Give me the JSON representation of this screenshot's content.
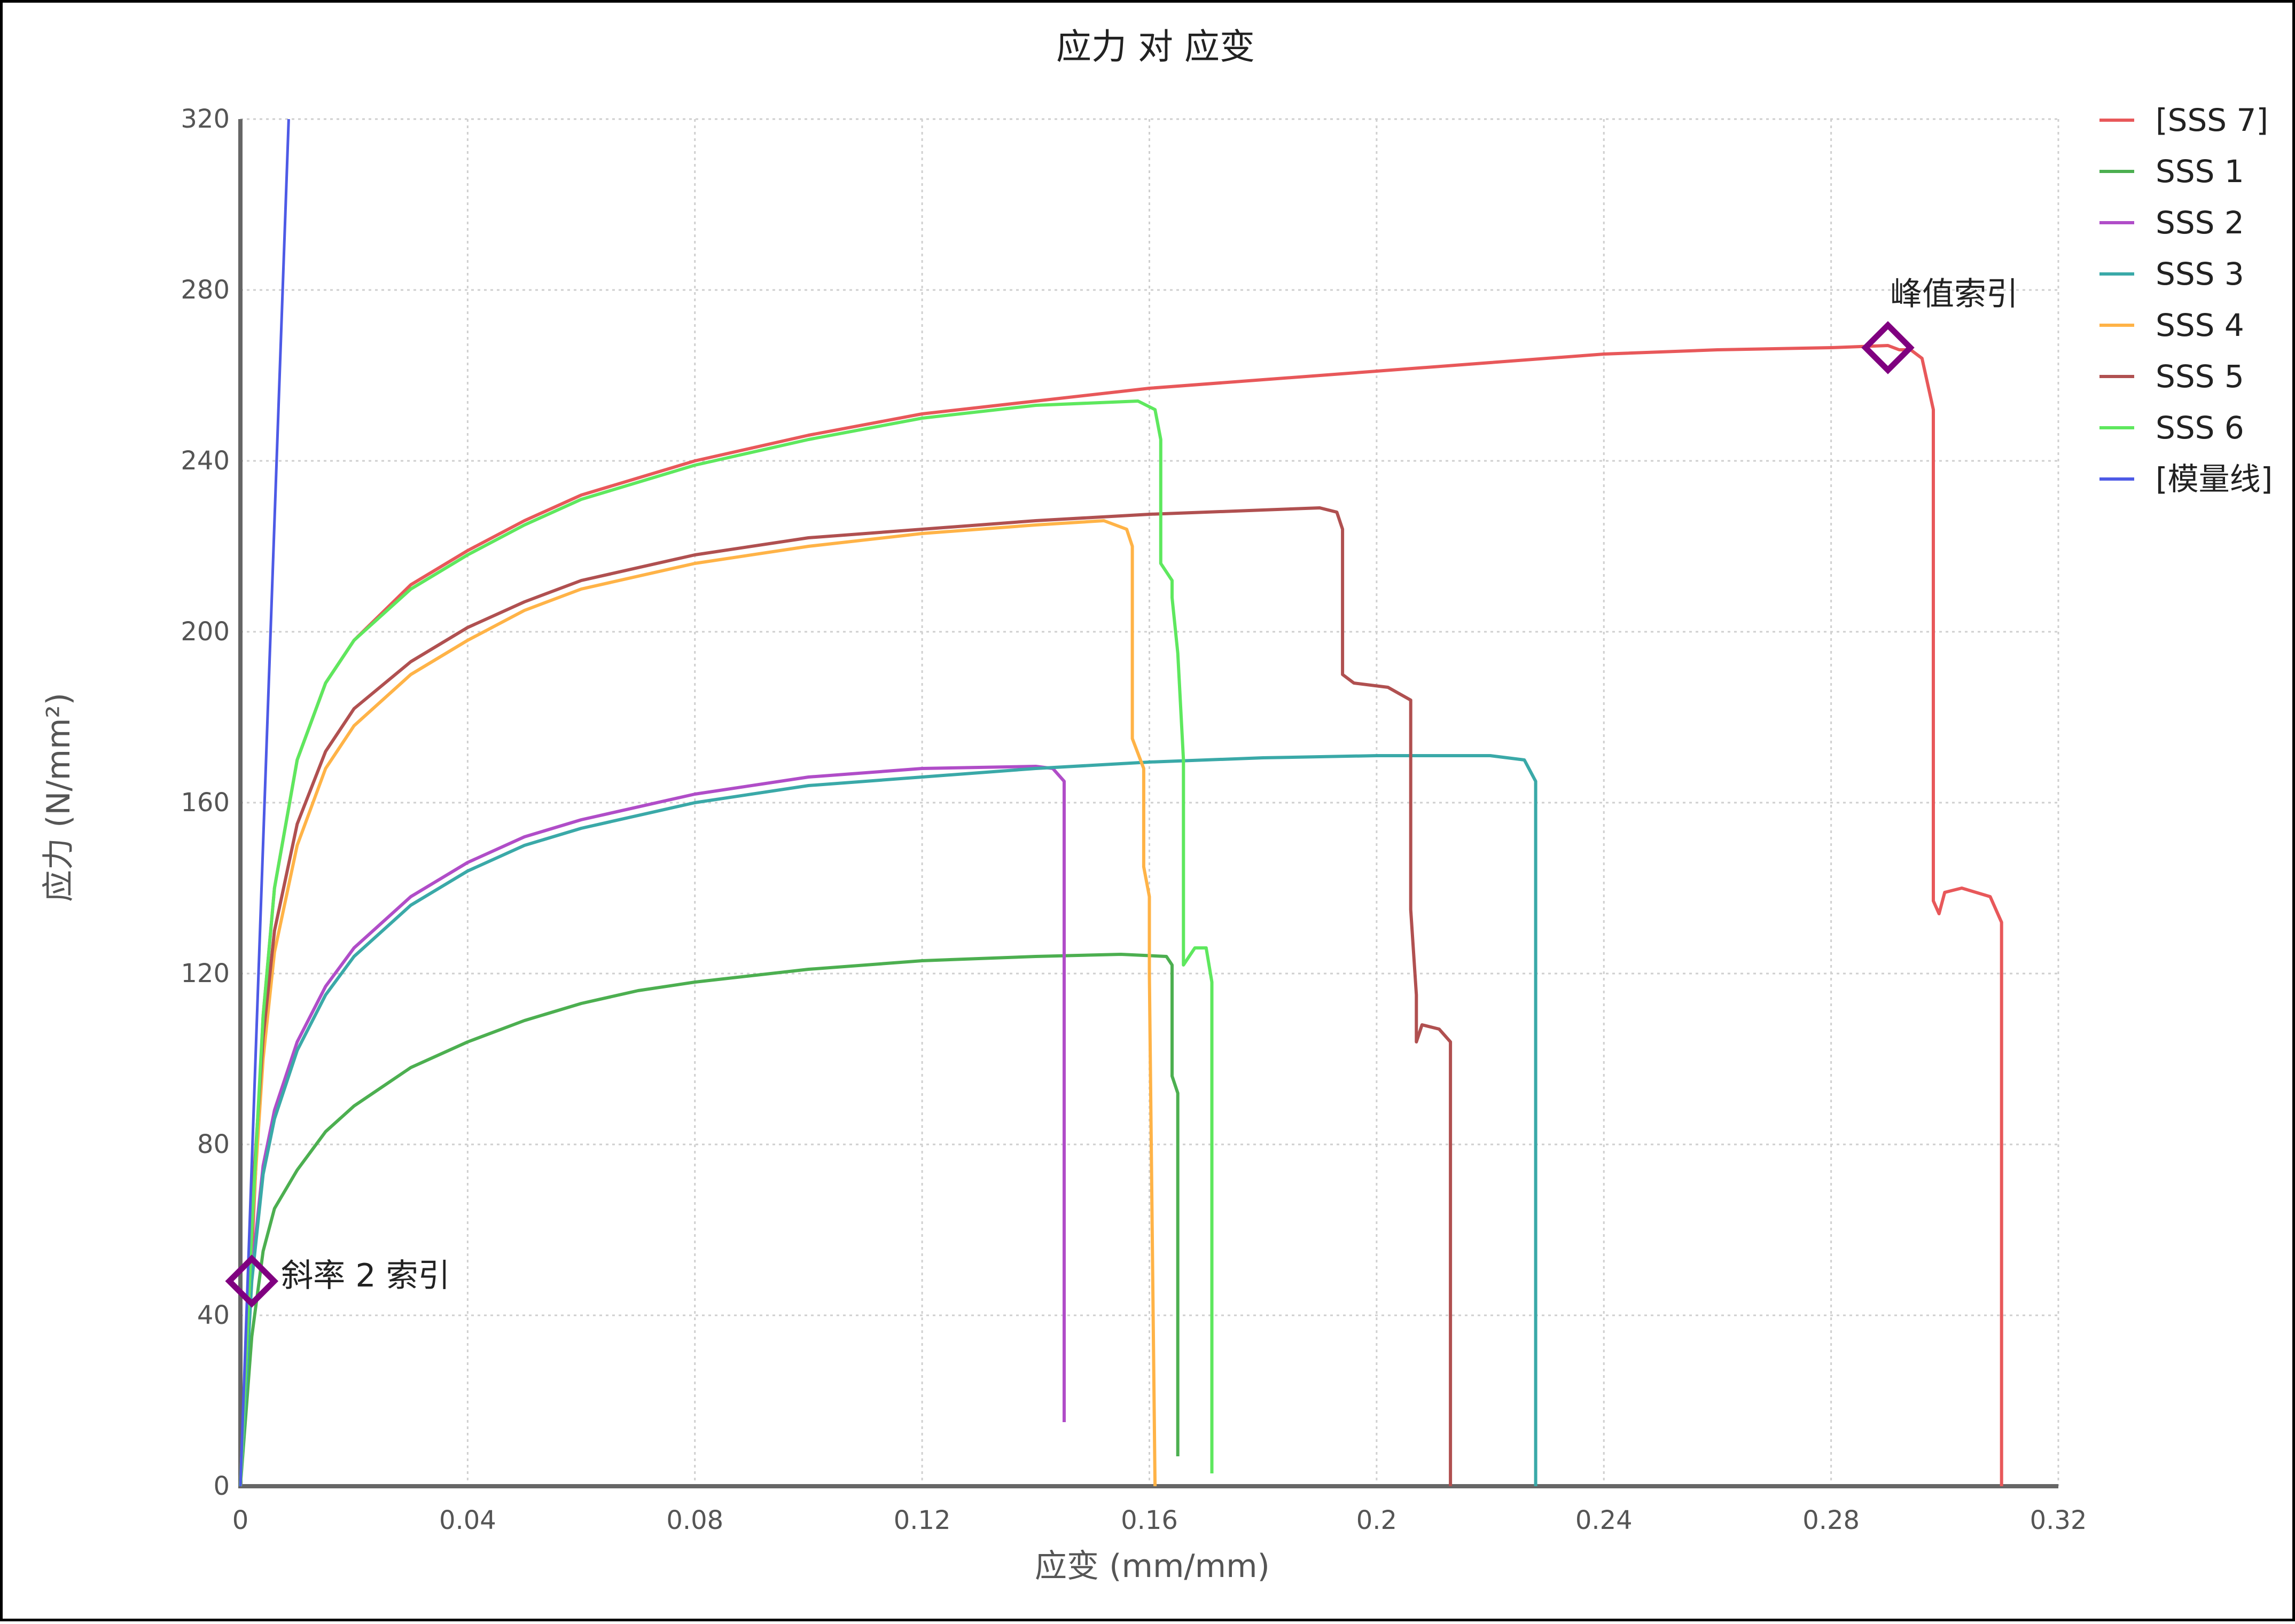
{
  "chart_data": {
    "type": "line",
    "title": "应力 对 应变",
    "xlabel": "应变 (mm/mm)",
    "ylabel": "应力 (N/mm²)",
    "xlim": [
      0,
      0.32
    ],
    "ylim": [
      0,
      320
    ],
    "xticks": [
      0,
      0.04,
      0.08,
      0.12,
      0.16,
      0.2,
      0.24,
      0.28,
      0.32
    ],
    "xtick_labels": [
      "0",
      "0.04",
      "0.08",
      "0.12",
      "0.16",
      "0.2",
      "0.24",
      "0.28",
      "0.32"
    ],
    "yticks": [
      0,
      40,
      80,
      120,
      160,
      200,
      240,
      280,
      320
    ],
    "ytick_labels": [
      "0",
      "40",
      "80",
      "120",
      "160",
      "200",
      "240",
      "280",
      "320"
    ],
    "grid": true,
    "legend_position": "right",
    "series": [
      {
        "name": "[SSS 7]",
        "color": "#e8585a",
        "points": [
          [
            0,
            0
          ],
          [
            0.002,
            55
          ],
          [
            0.004,
            110
          ],
          [
            0.006,
            140
          ],
          [
            0.01,
            170
          ],
          [
            0.015,
            188
          ],
          [
            0.02,
            198
          ],
          [
            0.03,
            211
          ],
          [
            0.04,
            219
          ],
          [
            0.05,
            226
          ],
          [
            0.06,
            232
          ],
          [
            0.08,
            240
          ],
          [
            0.1,
            246
          ],
          [
            0.12,
            251
          ],
          [
            0.14,
            254
          ],
          [
            0.16,
            257
          ],
          [
            0.18,
            259
          ],
          [
            0.2,
            261
          ],
          [
            0.22,
            263
          ],
          [
            0.24,
            265
          ],
          [
            0.26,
            266
          ],
          [
            0.28,
            266.5
          ],
          [
            0.29,
            267
          ],
          [
            0.292,
            266
          ],
          [
            0.294,
            266
          ],
          [
            0.296,
            264
          ],
          [
            0.297,
            258
          ],
          [
            0.298,
            252
          ],
          [
            0.298,
            137
          ],
          [
            0.299,
            134
          ],
          [
            0.3,
            139
          ],
          [
            0.303,
            140
          ],
          [
            0.308,
            138
          ],
          [
            0.31,
            132
          ],
          [
            0.31,
            0
          ]
        ]
      },
      {
        "name": "SSS 1",
        "color": "#4caf50",
        "points": [
          [
            0,
            0
          ],
          [
            0.002,
            35
          ],
          [
            0.004,
            55
          ],
          [
            0.006,
            65
          ],
          [
            0.01,
            74
          ],
          [
            0.015,
            83
          ],
          [
            0.02,
            89
          ],
          [
            0.03,
            98
          ],
          [
            0.04,
            104
          ],
          [
            0.05,
            109
          ],
          [
            0.06,
            113
          ],
          [
            0.07,
            116
          ],
          [
            0.08,
            118
          ],
          [
            0.1,
            121
          ],
          [
            0.12,
            123
          ],
          [
            0.14,
            124
          ],
          [
            0.155,
            124.5
          ],
          [
            0.163,
            124
          ],
          [
            0.164,
            122
          ],
          [
            0.164,
            96
          ],
          [
            0.165,
            92
          ],
          [
            0.165,
            7
          ]
        ]
      },
      {
        "name": "SSS 2",
        "color": "#b04dc8",
        "points": [
          [
            0,
            0
          ],
          [
            0.002,
            50
          ],
          [
            0.004,
            75
          ],
          [
            0.006,
            88
          ],
          [
            0.01,
            104
          ],
          [
            0.015,
            117
          ],
          [
            0.02,
            126
          ],
          [
            0.03,
            138
          ],
          [
            0.04,
            146
          ],
          [
            0.05,
            152
          ],
          [
            0.06,
            156
          ],
          [
            0.08,
            162
          ],
          [
            0.1,
            166
          ],
          [
            0.12,
            168
          ],
          [
            0.14,
            168.5
          ],
          [
            0.143,
            168
          ],
          [
            0.145,
            165
          ],
          [
            0.145,
            15
          ]
        ]
      },
      {
        "name": "SSS 3",
        "color": "#3aa9a8",
        "points": [
          [
            0,
            0
          ],
          [
            0.002,
            48
          ],
          [
            0.004,
            73
          ],
          [
            0.006,
            86
          ],
          [
            0.01,
            102
          ],
          [
            0.015,
            115
          ],
          [
            0.02,
            124
          ],
          [
            0.03,
            136
          ],
          [
            0.04,
            144
          ],
          [
            0.05,
            150
          ],
          [
            0.06,
            154
          ],
          [
            0.08,
            160
          ],
          [
            0.1,
            164
          ],
          [
            0.12,
            166
          ],
          [
            0.14,
            168
          ],
          [
            0.16,
            169.5
          ],
          [
            0.18,
            170.5
          ],
          [
            0.2,
            171
          ],
          [
            0.22,
            171
          ],
          [
            0.226,
            170
          ],
          [
            0.228,
            165
          ],
          [
            0.228,
            0
          ]
        ]
      },
      {
        "name": "SSS 4",
        "color": "#ffb347",
        "points": [
          [
            0,
            0
          ],
          [
            0.002,
            60
          ],
          [
            0.004,
            100
          ],
          [
            0.006,
            125
          ],
          [
            0.01,
            150
          ],
          [
            0.015,
            168
          ],
          [
            0.02,
            178
          ],
          [
            0.03,
            190
          ],
          [
            0.04,
            198
          ],
          [
            0.05,
            205
          ],
          [
            0.06,
            210
          ],
          [
            0.08,
            216
          ],
          [
            0.1,
            220
          ],
          [
            0.12,
            223
          ],
          [
            0.14,
            225
          ],
          [
            0.152,
            226
          ],
          [
            0.156,
            224
          ],
          [
            0.157,
            220
          ],
          [
            0.157,
            175
          ],
          [
            0.159,
            168
          ],
          [
            0.159,
            145
          ],
          [
            0.16,
            138
          ],
          [
            0.16,
            120
          ],
          [
            0.161,
            0
          ]
        ]
      },
      {
        "name": "SSS 5",
        "color": "#b05050",
        "points": [
          [
            0,
            0
          ],
          [
            0.002,
            65
          ],
          [
            0.004,
            105
          ],
          [
            0.006,
            130
          ],
          [
            0.01,
            155
          ],
          [
            0.015,
            172
          ],
          [
            0.02,
            182
          ],
          [
            0.03,
            193
          ],
          [
            0.04,
            201
          ],
          [
            0.05,
            207
          ],
          [
            0.06,
            212
          ],
          [
            0.08,
            218
          ],
          [
            0.1,
            222
          ],
          [
            0.12,
            224
          ],
          [
            0.14,
            226
          ],
          [
            0.16,
            227.5
          ],
          [
            0.18,
            228.5
          ],
          [
            0.19,
            229
          ],
          [
            0.193,
            228
          ],
          [
            0.194,
            224
          ],
          [
            0.194,
            190
          ],
          [
            0.196,
            188
          ],
          [
            0.202,
            187
          ],
          [
            0.206,
            184
          ],
          [
            0.206,
            135
          ],
          [
            0.207,
            115
          ],
          [
            0.207,
            104
          ],
          [
            0.208,
            108
          ],
          [
            0.211,
            107
          ],
          [
            0.213,
            104
          ],
          [
            0.213,
            0
          ]
        ]
      },
      {
        "name": "SSS 6",
        "color": "#5ee85e",
        "points": [
          [
            0,
            0
          ],
          [
            0.002,
            60
          ],
          [
            0.004,
            110
          ],
          [
            0.006,
            140
          ],
          [
            0.01,
            170
          ],
          [
            0.015,
            188
          ],
          [
            0.02,
            198
          ],
          [
            0.03,
            210
          ],
          [
            0.04,
            218
          ],
          [
            0.05,
            225
          ],
          [
            0.06,
            231
          ],
          [
            0.08,
            239
          ],
          [
            0.1,
            245
          ],
          [
            0.12,
            250
          ],
          [
            0.14,
            253
          ],
          [
            0.158,
            254
          ],
          [
            0.161,
            252
          ],
          [
            0.162,
            245
          ],
          [
            0.162,
            216
          ],
          [
            0.164,
            212
          ],
          [
            0.164,
            208
          ],
          [
            0.165,
            195
          ],
          [
            0.166,
            170
          ],
          [
            0.166,
            122
          ],
          [
            0.168,
            126
          ],
          [
            0.17,
            126
          ],
          [
            0.171,
            118
          ],
          [
            0.171,
            3
          ]
        ]
      },
      {
        "name": "[模量线]",
        "color": "#4d5ae6",
        "points": [
          [
            0,
            0
          ],
          [
            0.0085,
            320
          ]
        ]
      }
    ],
    "annotations": [
      {
        "label": "峰值索引",
        "x": 0.29,
        "y": 266.5,
        "marker": "diamond",
        "color": "#800080"
      },
      {
        "label": "斜率 2 索引",
        "x": 0.002,
        "y": 48,
        "marker": "diamond",
        "color": "#800080"
      }
    ]
  }
}
